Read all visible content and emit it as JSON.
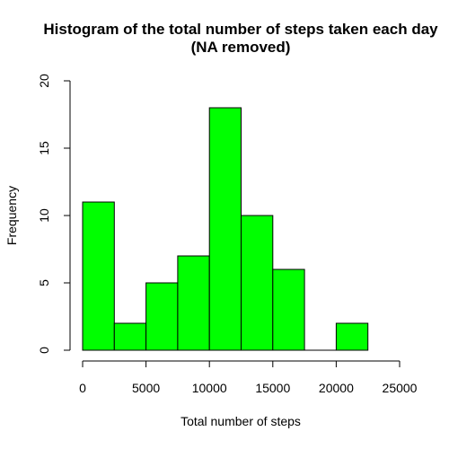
{
  "chart_data": {
    "type": "bar",
    "title": "Histogram of the total number of steps taken each day",
    "subtitle": "(NA removed)",
    "xlabel": "Total number of steps",
    "ylabel": "Frequency",
    "bin_edges": [
      0,
      2500,
      5000,
      7500,
      10000,
      12500,
      15000,
      17500,
      20000,
      22500
    ],
    "values": [
      11,
      2,
      5,
      7,
      18,
      10,
      6,
      0,
      2
    ],
    "xlim": [
      0,
      25000
    ],
    "ylim": [
      0,
      20
    ],
    "x_ticks": [
      0,
      5000,
      10000,
      15000,
      20000,
      25000
    ],
    "y_ticks": [
      0,
      5,
      10,
      15,
      20
    ],
    "bar_color": "#00ff00",
    "grid": false
  }
}
